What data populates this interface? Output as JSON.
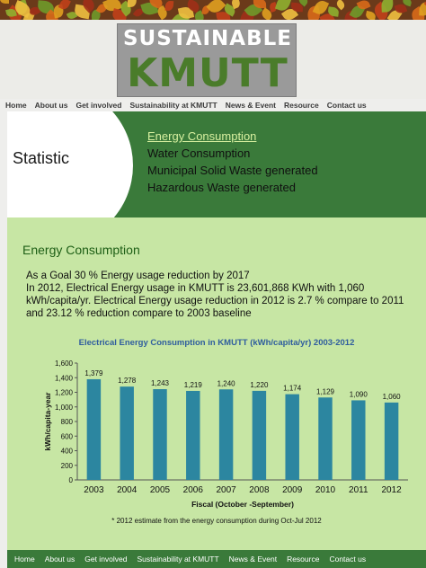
{
  "logo": {
    "line1": "SUSTAINABLE",
    "line2": "KMUTT"
  },
  "nav": [
    "Home",
    "About us",
    "Get involved",
    "Sustainability at KMUTT",
    "News & Event",
    "Resource",
    "Contact us"
  ],
  "hero": {
    "title": "Statistic",
    "links": [
      {
        "label": "Energy Consumption",
        "active": true
      },
      {
        "label": "Water Consumption",
        "active": false
      },
      {
        "label": "Municipal Solid Waste generated",
        "active": false
      },
      {
        "label": "Hazardous Waste generated",
        "active": false
      }
    ]
  },
  "section": {
    "title": "Energy Consumption",
    "lines": [
      "As a Goal  30 % Energy usage reduction by 2017",
      "In 2012, Electrical Energy usage in KMUTT is 23,601,868 KWh with 1,060",
      "kWh/capita/yr.  Electrical Energy usage reduction in 2012 is 2.7 % compare to 2011",
      "and 23.12 % reduction compare to 2003 baseline"
    ]
  },
  "chart_data": {
    "type": "bar",
    "title": "Electrical Energy Consumption in KMUTT (kWh/capita/yr)  2003-2012",
    "categories": [
      "2003",
      "2004",
      "2005",
      "2006",
      "2007",
      "2008",
      "2009",
      "2010",
      "2011",
      "2012"
    ],
    "values": [
      1379,
      1278,
      1243,
      1219,
      1240,
      1220,
      1174,
      1129,
      1090,
      1060
    ],
    "data_labels": [
      "1,379",
      "1,278",
      "1,243",
      "1,219",
      "1,240",
      "1,220",
      "1,174",
      "1,129",
      "1,090",
      "1,060"
    ],
    "xlabel": "Fiscal (October -September)",
    "ylabel": "kWh/capita-year",
    "ylim": [
      0,
      1600
    ],
    "yticks": [
      "0",
      "200",
      "400",
      "600",
      "800",
      "1,000",
      "1,200",
      "1,400",
      "1,600"
    ],
    "ytick_values": [
      0,
      200,
      400,
      600,
      800,
      1000,
      1200,
      1400,
      1600
    ],
    "bar_color": "#2c86a0",
    "note": "* 2012 estimate from the energy consumption during Oct-Jul 2012"
  },
  "footer": [
    "Home",
    "About us",
    "Get involved",
    "Sustainability at KMUTT",
    "News & Event",
    "Resource",
    "Contact us"
  ],
  "colors": {
    "green_dark": "#3a7a3a",
    "content_bg": "#c7e6a4",
    "title_blue": "#2f5d9e"
  }
}
